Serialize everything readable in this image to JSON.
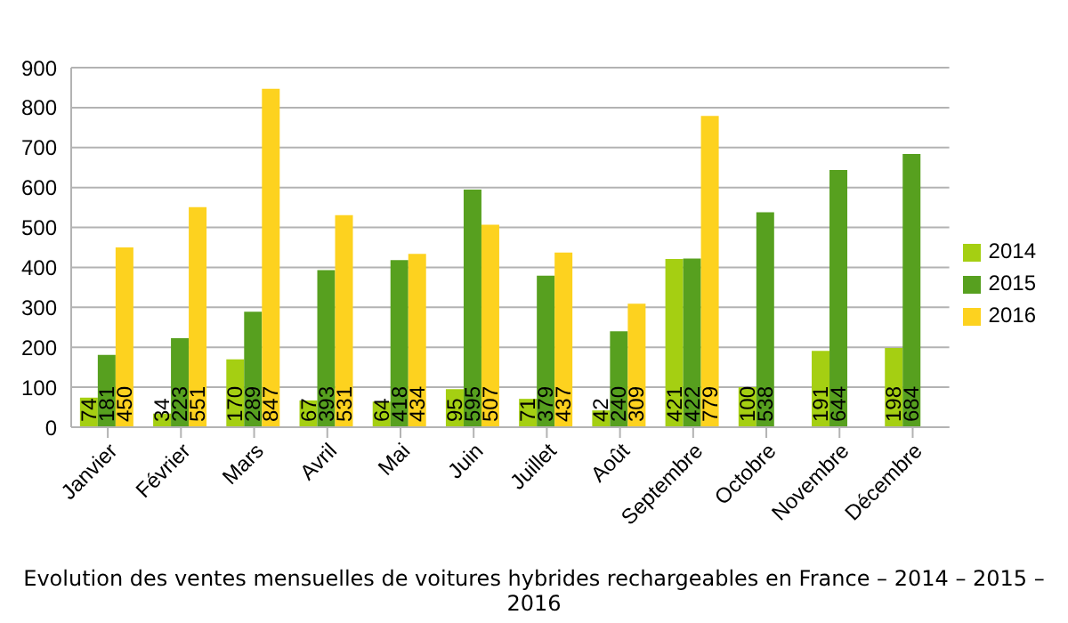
{
  "chart_data": {
    "type": "bar",
    "title": "Evolution des ventes mensuelles de voitures hybrides rechargeables en France – 2014 – 2015 – 2016",
    "categories": [
      "Janvier",
      "Février",
      "Mars",
      "Avril",
      "Mai",
      "Juin",
      "Juillet",
      "Août",
      "Septembre",
      "Octobre",
      "Novembre",
      "Décembre"
    ],
    "series": [
      {
        "name": "2014",
        "color": "#a5cf12",
        "values": [
          74,
          34,
          170,
          67,
          64,
          95,
          71,
          42,
          421,
          100,
          191,
          198
        ]
      },
      {
        "name": "2015",
        "color": "#57a01f",
        "values": [
          181,
          223,
          289,
          393,
          418,
          595,
          379,
          240,
          422,
          538,
          644,
          684
        ]
      },
      {
        "name": "2016",
        "color": "#fdd21f",
        "values": [
          450,
          551,
          847,
          531,
          434,
          507,
          437,
          309,
          779,
          null,
          null,
          null
        ]
      }
    ],
    "ylim": [
      0,
      900
    ],
    "yticks": [
      0,
      100,
      200,
      300,
      400,
      500,
      600,
      700,
      800,
      900
    ],
    "grid": "y",
    "legend": "right",
    "data_labels": true
  }
}
